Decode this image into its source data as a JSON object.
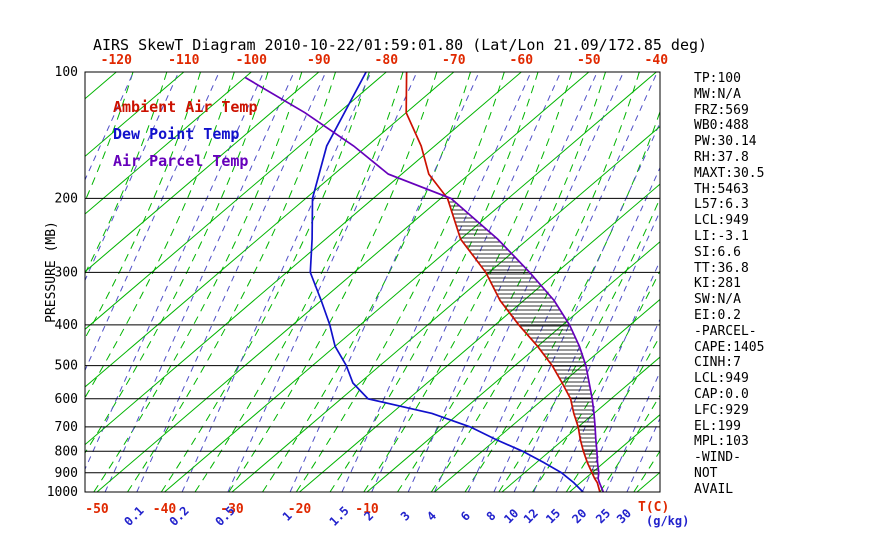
{
  "title": "AIRS SkewT Diagram 2010-10-22/01:59:01.80 (Lat/Lon 21.09/172.85 deg)",
  "legend": [
    {
      "label": "Ambient Air Temp",
      "color": "#cc1100"
    },
    {
      "label": "Dew Point Temp",
      "color": "#1111cc"
    },
    {
      "label": "Air Parcel Temp",
      "color": "#6600bb"
    }
  ],
  "indices": [
    "TP:100",
    "MW:N/A",
    "FRZ:569",
    "WB0:488",
    "PW:30.14",
    "RH:37.8",
    "MAXT:30.5",
    "TH:5463",
    "L57:6.3",
    "LCL:949",
    "LI:-3.1",
    "SI:6.6",
    "TT:36.8",
    "KI:281",
    "SW:N/A",
    "EI:0.2",
    "-PARCEL-",
    "CAPE:1405",
    "CINH:7",
    "LCL:949",
    "CAP:0.0",
    "LFC:929",
    "EL:199",
    "MPL:103",
    "-WIND-",
    "NOT",
    "AVAIL"
  ],
  "chart_data": {
    "type": "line",
    "x_axis": "temperature_C_skewed",
    "y_axis": "pressure_mb_log",
    "axes": {
      "pressure_label": "PRESSURE (MB)",
      "pressure_ticks": [
        100,
        200,
        300,
        400,
        500,
        600,
        700,
        800,
        900,
        1000
      ],
      "top_temp_ticks": [
        -120,
        -110,
        -100,
        -90,
        -80,
        -70,
        -60,
        -50,
        -40
      ],
      "bottom_temp_ticks": [
        -50,
        -40,
        -30,
        -20,
        -10
      ],
      "temp_unit": "T(C)",
      "mixing_unit": "(g/kg)",
      "mixing_ratio_ticks": [
        "0.1",
        "0.2",
        "0.5",
        "1",
        "1.5",
        "2",
        "3",
        "4",
        "6",
        "8",
        "10",
        "12",
        "15",
        "20",
        "25",
        "30"
      ],
      "mixing_tick_t": [
        -44.1,
        -37.4,
        -30.6,
        -21.4,
        -13.7,
        -9.3,
        -3.9,
        0,
        5,
        8.8,
        11.8,
        14.7,
        18,
        21.9,
        25.4,
        28.5
      ],
      "pressure_range": [
        100,
        1000
      ]
    },
    "colors": {
      "isotherm": "#00b400",
      "moist_adiabat": "#00b400",
      "mixing_line": "#5050c8",
      "temp_axis_labels": "#e02800",
      "mixing_axis_labels": "#2222cc",
      "pressure_axis_labels": "#000000",
      "hatch": "#000000",
      "frame": "#000000"
    },
    "series": [
      {
        "name": "Ambient Air Temp",
        "color": "#cc1100",
        "points": [
          [
            1000,
            24.5
          ],
          [
            950,
            22.5
          ],
          [
            929,
            21.4
          ],
          [
            900,
            20
          ],
          [
            850,
            17.5
          ],
          [
            800,
            15
          ],
          [
            750,
            12.5
          ],
          [
            700,
            10
          ],
          [
            650,
            7
          ],
          [
            600,
            4
          ],
          [
            550,
            0
          ],
          [
            500,
            -4.5
          ],
          [
            450,
            -10
          ],
          [
            400,
            -16.5
          ],
          [
            350,
            -23.5
          ],
          [
            300,
            -30.5
          ],
          [
            250,
            -40
          ],
          [
            200,
            -49
          ],
          [
            175,
            -56
          ],
          [
            150,
            -62
          ],
          [
            125,
            -70
          ],
          [
            100,
            -77
          ]
        ]
      },
      {
        "name": "Dew Point Temp",
        "color": "#1111cc",
        "points": [
          [
            1000,
            22
          ],
          [
            950,
            19
          ],
          [
            900,
            15.5
          ],
          [
            850,
            11
          ],
          [
            800,
            6
          ],
          [
            750,
            0
          ],
          [
            700,
            -6
          ],
          [
            650,
            -14
          ],
          [
            600,
            -26
          ],
          [
            550,
            -31
          ],
          [
            500,
            -35
          ],
          [
            450,
            -40
          ],
          [
            400,
            -44.5
          ],
          [
            350,
            -50
          ],
          [
            300,
            -56.5
          ],
          [
            250,
            -62
          ],
          [
            200,
            -69
          ],
          [
            150,
            -76
          ],
          [
            100,
            -83
          ]
        ]
      },
      {
        "name": "Air Parcel Temp",
        "color": "#6600bb",
        "points": [
          [
            1000,
            25
          ],
          [
            950,
            22.8
          ],
          [
            929,
            21.9
          ],
          [
            900,
            21
          ],
          [
            850,
            19
          ],
          [
            800,
            17
          ],
          [
            750,
            14.8
          ],
          [
            700,
            12.5
          ],
          [
            650,
            10
          ],
          [
            600,
            7.2
          ],
          [
            550,
            4
          ],
          [
            500,
            0.5
          ],
          [
            450,
            -3.8
          ],
          [
            400,
            -9
          ],
          [
            350,
            -15.5
          ],
          [
            300,
            -24
          ],
          [
            250,
            -34.5
          ],
          [
            200,
            -48.5
          ],
          [
            175,
            -62
          ],
          [
            150,
            -72
          ],
          [
            125,
            -85
          ],
          [
            103,
            -100
          ]
        ]
      }
    ],
    "cape_hatch": {
      "between": [
        "Air Parcel Temp",
        "Ambient Air Temp"
      ],
      "pressure_span": [
        929,
        200
      ]
    }
  }
}
